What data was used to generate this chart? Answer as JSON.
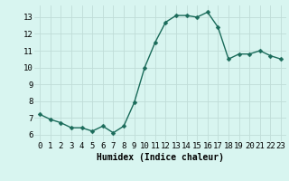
{
  "x": [
    0,
    1,
    2,
    3,
    4,
    5,
    6,
    7,
    8,
    9,
    10,
    11,
    12,
    13,
    14,
    15,
    16,
    17,
    18,
    19,
    20,
    21,
    22,
    23
  ],
  "y": [
    7.2,
    6.9,
    6.7,
    6.4,
    6.4,
    6.2,
    6.5,
    6.1,
    6.5,
    7.9,
    10.0,
    11.5,
    12.7,
    13.1,
    13.1,
    13.0,
    13.3,
    12.4,
    10.5,
    10.8,
    10.8,
    11.0,
    10.7,
    10.5
  ],
  "line_color": "#1a6b5a",
  "marker": "D",
  "marker_size": 2.5,
  "line_width": 1.0,
  "bg_color": "#d8f5f0",
  "grid_color": "#c0ddd8",
  "xlabel": "Humidex (Indice chaleur)",
  "xlabel_fontsize": 7,
  "xtick_labels": [
    "0",
    "1",
    "2",
    "3",
    "4",
    "5",
    "6",
    "7",
    "8",
    "9",
    "10",
    "11",
    "12",
    "13",
    "14",
    "15",
    "16",
    "17",
    "18",
    "19",
    "20",
    "21",
    "22",
    "23"
  ],
  "ytick_vals": [
    6,
    7,
    8,
    9,
    10,
    11,
    12,
    13
  ],
  "ytick_labels": [
    "6",
    "7",
    "8",
    "9",
    "10",
    "11",
    "12",
    "13"
  ],
  "ylim": [
    5.6,
    13.7
  ],
  "xlim": [
    -0.5,
    23.5
  ],
  "tick_fontsize": 6.5
}
